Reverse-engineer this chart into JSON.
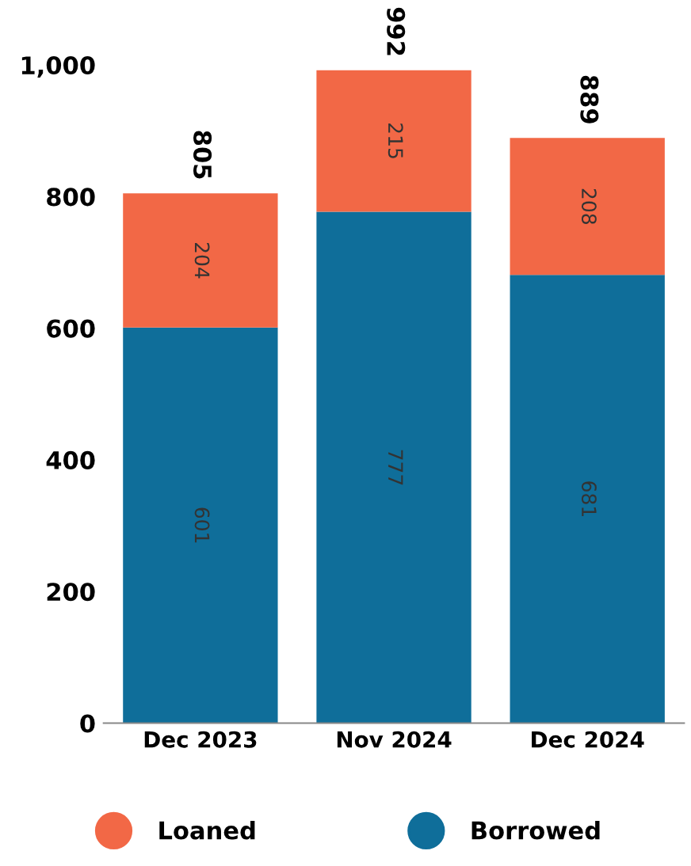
{
  "chart_data": {
    "type": "bar",
    "stacked": true,
    "categories": [
      "Dec 2023",
      "Nov 2024",
      "Dec 2024"
    ],
    "series": [
      {
        "name": "Borrowed",
        "color": "#0f6e9a",
        "values": [
          601,
          777,
          681
        ]
      },
      {
        "name": "Loaned",
        "color": "#f26846",
        "values": [
          204,
          215,
          208
        ]
      }
    ],
    "ylim": [
      0,
      1000
    ],
    "yticks": [
      0,
      200,
      400,
      600,
      800,
      {
        "value": 1000,
        "label": "1,000"
      }
    ],
    "data_labels": true,
    "totals": [
      "805",
      "992",
      "889"
    ],
    "grid": false,
    "legend": "bottom"
  }
}
